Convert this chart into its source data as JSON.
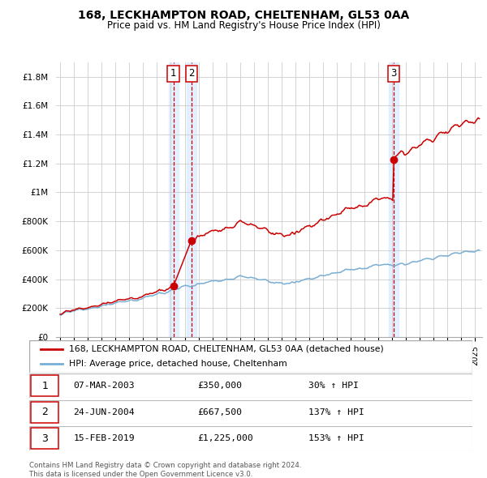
{
  "title1": "168, LECKHAMPTON ROAD, CHELTENHAM, GL53 0AA",
  "title2": "Price paid vs. HM Land Registry's House Price Index (HPI)",
  "ylabel_ticks": [
    "£0",
    "£200K",
    "£400K",
    "£600K",
    "£800K",
    "£1M",
    "£1.2M",
    "£1.4M",
    "£1.6M",
    "£1.8M"
  ],
  "ytick_values": [
    0,
    200000,
    400000,
    600000,
    800000,
    1000000,
    1200000,
    1400000,
    1600000,
    1800000
  ],
  "ylim": [
    0,
    1900000
  ],
  "xlim_start": 1994.7,
  "xlim_end": 2025.5,
  "sale_dates": [
    2003.18,
    2004.48,
    2019.12
  ],
  "sale_prices": [
    350000,
    667500,
    1225000
  ],
  "sale_labels": [
    "1",
    "2",
    "3"
  ],
  "legend_line1": "168, LECKHAMPTON ROAD, CHELTENHAM, GL53 0AA (detached house)",
  "legend_line2": "HPI: Average price, detached house, Cheltenham",
  "table_rows": [
    [
      "1",
      "07-MAR-2003",
      "£350,000",
      "30% ↑ HPI"
    ],
    [
      "2",
      "24-JUN-2004",
      "£667,500",
      "137% ↑ HPI"
    ],
    [
      "3",
      "15-FEB-2019",
      "£1,225,000",
      "153% ↑ HPI"
    ]
  ],
  "footnote1": "Contains HM Land Registry data © Crown copyright and database right 2024.",
  "footnote2": "This data is licensed under the Open Government Licence v3.0.",
  "red_color": "#cc0000",
  "blue_color": "#7aafd4",
  "shade_color": "#ddeeff",
  "grid_color": "#cccccc"
}
